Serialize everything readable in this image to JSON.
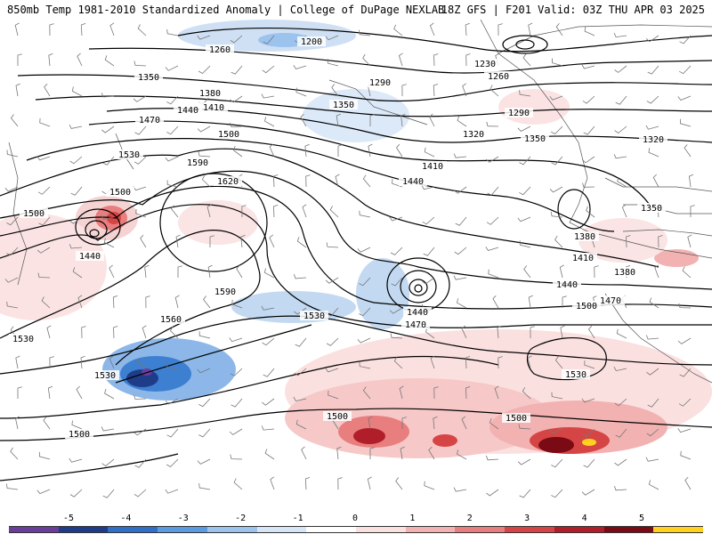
{
  "header": {
    "left": "850mb Temp 1981-2010 Standardized Anomaly | College of DuPage NEXLAB",
    "right": "18Z GFS | F201 Valid: 03Z THU APR 03 2025"
  },
  "contour_labels": [
    "1200",
    "1260",
    "1230",
    "1260",
    "1350",
    "1290",
    "1380",
    "1410",
    "1440",
    "1470",
    "1350",
    "1290",
    "1320",
    "1350",
    "1320",
    "1500",
    "1530",
    "1590",
    "1620",
    "1410",
    "1440",
    "1500",
    "1500",
    "1350",
    "1440",
    "1380",
    "1410",
    "1440",
    "1380",
    "1470",
    "1590",
    "1560",
    "1530",
    "1440",
    "1470",
    "1500",
    "1530",
    "1530",
    "1530",
    "1500",
    "1500",
    "1500"
  ],
  "colorbar": {
    "ticks": [
      "-5",
      "-4",
      "-3",
      "-2",
      "-1",
      "0",
      "1",
      "2",
      "3",
      "4",
      "5"
    ],
    "colors": [
      "#6a3d9a",
      "#1f3c88",
      "#2f6fc8",
      "#5b9be0",
      "#9cc3ee",
      "#d6e6f7",
      "#ffffff",
      "#fbe0e0",
      "#f3b2b2",
      "#e87e7e",
      "#d64545",
      "#b01e2a",
      "#7a0a14",
      "#ffd21f"
    ]
  },
  "map_colors": {
    "cold": "#5b9be0",
    "cold_strong": "#1f3c88",
    "warm": "#f3b2b2",
    "warm_strong": "#b01e2a",
    "extreme": "#ffd21f",
    "contour": "#000000"
  }
}
